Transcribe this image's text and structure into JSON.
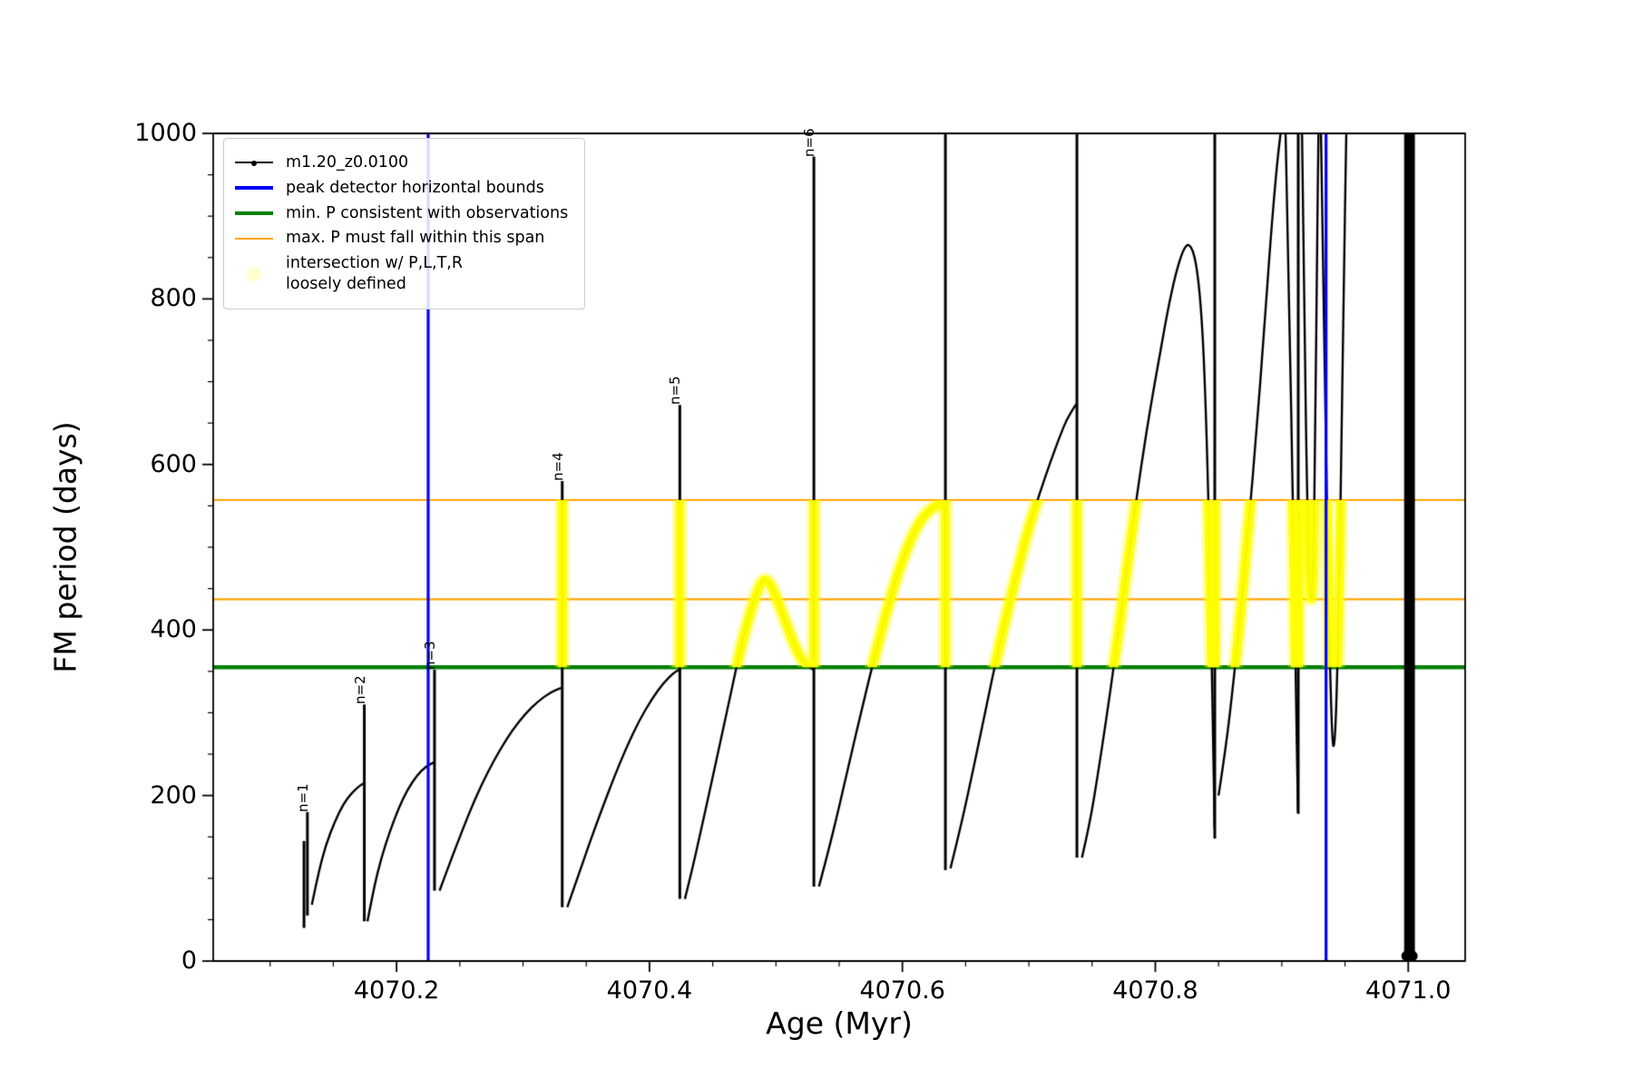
{
  "figure": {
    "bg": "#ffffff",
    "axes": {
      "xlabel": "Age (Myr)",
      "ylabel": "FM period (days)",
      "xlim": [
        4070.055,
        4071.045
      ],
      "ylim": [
        0,
        1000
      ],
      "xticks": [
        4070.2,
        4070.4,
        4070.6,
        4070.8,
        4071.0
      ],
      "xtick_labels": [
        "4070.2",
        "4070.4",
        "4070.6",
        "4070.8",
        "4071.0"
      ],
      "yticks": [
        0,
        200,
        400,
        600,
        800,
        1000
      ],
      "ytick_labels": [
        "0",
        "200",
        "400",
        "600",
        "800",
        "1000"
      ],
      "x_minor_step": 0.05,
      "y_minor_step": 50
    },
    "legend": {
      "items": [
        {
          "label": "m1.20_z0.0100",
          "swatch": "line-dot",
          "color": "#000000",
          "weight": 1.5
        },
        {
          "label": "peak detector horizontal bounds",
          "swatch": "line",
          "color": "#0000ff",
          "weight": 4
        },
        {
          "label": "min. P consistent with observations",
          "swatch": "line",
          "color": "#008000",
          "weight": 4
        },
        {
          "label": "max. P must fall within this span",
          "swatch": "line",
          "color": "#ffa500",
          "weight": 2.5
        },
        {
          "label": "intersection w/ P,L,T,R\nloosely defined",
          "swatch": "dot",
          "color": "#ffffcf",
          "weight": 15
        }
      ]
    }
  },
  "chart_data": {
    "type": "line",
    "title": "",
    "xlabel": "Age (Myr)",
    "ylabel": "FM period (days)",
    "xlim": [
      4070.055,
      4071.045
    ],
    "ylim": [
      0,
      1000
    ],
    "grid": false,
    "legend_position": "upper left",
    "series_name": "m1.20_z0.0100",
    "line_color": "#000000",
    "vlines": [
      {
        "x": 4070.225,
        "color": "#0000ff"
      },
      {
        "x": 4070.935,
        "color": "#0000ff"
      }
    ],
    "hlines": [
      {
        "y": 355,
        "color": "#008000",
        "lw": 4.5
      },
      {
        "y": 437,
        "color": "#ffa500",
        "lw": 2.2
      },
      {
        "y": 557,
        "color": "#ffa500",
        "lw": 2.2
      }
    ],
    "highlight": {
      "color": "#ffff00",
      "y_range": [
        355,
        557
      ],
      "x_range": [
        4070.3,
        4070.955
      ]
    },
    "peak_labels": [
      {
        "text": "n=1",
        "x": 4070.1295,
        "y": 180
      },
      {
        "text": "n=2",
        "x": 4070.1745,
        "y": 310
      },
      {
        "text": "n=3",
        "x": 4070.23,
        "y": 352
      },
      {
        "text": "n=4",
        "x": 4070.331,
        "y": 580
      },
      {
        "text": "n=5",
        "x": 4070.424,
        "y": 672
      },
      {
        "text": "n=6",
        "x": 4070.53,
        "y": 972
      }
    ],
    "spikes": [
      {
        "x": 4070.1268,
        "y0": 40,
        "y1": 145
      },
      {
        "x": 4070.1295,
        "y0": 55,
        "y1": 180
      },
      {
        "x": 4070.1745,
        "y0": 48,
        "y1": 310
      },
      {
        "x": 4070.23,
        "y0": 85,
        "y1": 352
      },
      {
        "x": 4070.331,
        "y0": 65,
        "y1": 580
      },
      {
        "x": 4070.424,
        "y0": 75,
        "y1": 672
      },
      {
        "x": 4070.53,
        "y0": 90,
        "y1": 972
      },
      {
        "x": 4070.634,
        "y0": 110,
        "y1": 1000
      },
      {
        "x": 4070.738,
        "y0": 125,
        "y1": 1000
      },
      {
        "x": 4070.847,
        "y0": 148,
        "y1": 1000
      },
      {
        "x": 4070.913,
        "y0": 178,
        "y1": 1000
      },
      {
        "x": 4071.001,
        "y0": 2,
        "y1": 1000,
        "w": 0.0085
      }
    ],
    "segments": [
      [
        [
          4070.133,
          68
        ],
        [
          4070.138,
          105
        ],
        [
          4070.144,
          140
        ],
        [
          4070.151,
          168
        ],
        [
          4070.158,
          190
        ],
        [
          4070.165,
          204
        ],
        [
          4070.171,
          212
        ],
        [
          4070.1745,
          215
        ]
      ],
      [
        [
          4070.177,
          48
        ],
        [
          4070.182,
          88
        ],
        [
          4070.188,
          125
        ],
        [
          4070.195,
          158
        ],
        [
          4070.202,
          186
        ],
        [
          4070.209,
          208
        ],
        [
          4070.216,
          224
        ],
        [
          4070.223,
          235
        ],
        [
          4070.2295,
          240
        ]
      ],
      [
        [
          4070.234,
          85
        ],
        [
          4070.242,
          118
        ],
        [
          4070.252,
          158
        ],
        [
          4070.262,
          196
        ],
        [
          4070.272,
          228
        ],
        [
          4070.282,
          256
        ],
        [
          4070.292,
          280
        ],
        [
          4070.302,
          299
        ],
        [
          4070.312,
          314
        ],
        [
          4070.322,
          325
        ],
        [
          4070.33,
          330
        ]
      ],
      [
        [
          4070.335,
          65
        ],
        [
          4070.343,
          100
        ],
        [
          4070.352,
          140
        ],
        [
          4070.362,
          182
        ],
        [
          4070.372,
          222
        ],
        [
          4070.382,
          259
        ],
        [
          4070.392,
          291
        ],
        [
          4070.402,
          317
        ],
        [
          4070.411,
          336
        ],
        [
          4070.419,
          348
        ],
        [
          4070.4235,
          352
        ]
      ],
      [
        [
          4070.428,
          75
        ],
        [
          4070.434,
          112
        ],
        [
          4070.441,
          160
        ],
        [
          4070.449,
          215
        ],
        [
          4070.457,
          272
        ],
        [
          4070.465,
          328
        ],
        [
          4070.472,
          378
        ],
        [
          4070.479,
          418
        ],
        [
          4070.485,
          446
        ],
        [
          4070.49,
          462
        ],
        [
          4070.495,
          458
        ],
        [
          4070.501,
          437
        ],
        [
          4070.508,
          408
        ],
        [
          4070.515,
          380
        ],
        [
          4070.521,
          362
        ],
        [
          4070.5295,
          352
        ]
      ],
      [
        [
          4070.534,
          90
        ],
        [
          4070.541,
          130
        ],
        [
          4070.549,
          180
        ],
        [
          4070.558,
          240
        ],
        [
          4070.568,
          305
        ],
        [
          4070.578,
          368
        ],
        [
          4070.588,
          425
        ],
        [
          4070.597,
          472
        ],
        [
          4070.606,
          508
        ],
        [
          4070.614,
          532
        ],
        [
          4070.622,
          546
        ],
        [
          4070.629,
          552
        ],
        [
          4070.6335,
          549
        ]
      ],
      [
        [
          4070.638,
          112
        ],
        [
          4070.645,
          155
        ],
        [
          4070.653,
          210
        ],
        [
          4070.662,
          275
        ],
        [
          4070.671,
          342
        ],
        [
          4070.681,
          410
        ],
        [
          4070.691,
          472
        ],
        [
          4070.7,
          525
        ],
        [
          4070.709,
          567
        ],
        [
          4070.717,
          603
        ],
        [
          4070.724,
          632
        ],
        [
          4070.73,
          655
        ],
        [
          4070.7375,
          673
        ]
      ],
      [
        [
          4070.742,
          125
        ],
        [
          4070.748,
          165
        ],
        [
          4070.754,
          220
        ],
        [
          4070.761,
          290
        ],
        [
          4070.768,
          365
        ],
        [
          4070.775,
          445
        ],
        [
          4070.782,
          525
        ],
        [
          4070.789,
          600
        ],
        [
          4070.796,
          668
        ],
        [
          4070.803,
          728
        ],
        [
          4070.81,
          788
        ],
        [
          4070.816,
          830
        ],
        [
          4070.822,
          860
        ],
        [
          4070.827,
          868
        ],
        [
          4070.832,
          848
        ],
        [
          4070.836,
          795
        ],
        [
          4070.839,
          710
        ],
        [
          4070.842,
          560
        ],
        [
          4070.844,
          400
        ],
        [
          4070.846,
          250
        ],
        [
          4070.8468,
          160
        ]
      ],
      [
        [
          4070.85,
          200
        ],
        [
          4070.856,
          260
        ],
        [
          4070.862,
          340
        ],
        [
          4070.868,
          430
        ],
        [
          4070.874,
          530
        ],
        [
          4070.88,
          640
        ],
        [
          4070.886,
          760
        ],
        [
          4070.891,
          870
        ],
        [
          4070.896,
          960
        ],
        [
          4070.899,
          1000
        ]
      ],
      [
        [
          4070.903,
          1000
        ],
        [
          4070.906,
          780
        ],
        [
          4070.909,
          540
        ],
        [
          4070.911,
          340
        ],
        [
          4070.9128,
          180
        ]
      ],
      [
        [
          4070.916,
          1000
        ],
        [
          4070.918,
          760
        ],
        [
          4070.92,
          560
        ],
        [
          4070.922,
          448
        ],
        [
          4070.9235,
          432
        ],
        [
          4070.925,
          480
        ],
        [
          4070.9265,
          640
        ],
        [
          4070.928,
          880
        ],
        [
          4070.929,
          1000
        ]
      ],
      [
        [
          4070.931,
          1000
        ],
        [
          4070.9335,
          760
        ],
        [
          4070.936,
          520
        ],
        [
          4070.938,
          360
        ],
        [
          4070.94,
          262
        ],
        [
          4070.9415,
          258
        ],
        [
          4070.943,
          300
        ],
        [
          4070.945,
          420
        ],
        [
          4070.947,
          600
        ],
        [
          4070.949,
          820
        ],
        [
          4070.951,
          1000
        ]
      ]
    ]
  }
}
